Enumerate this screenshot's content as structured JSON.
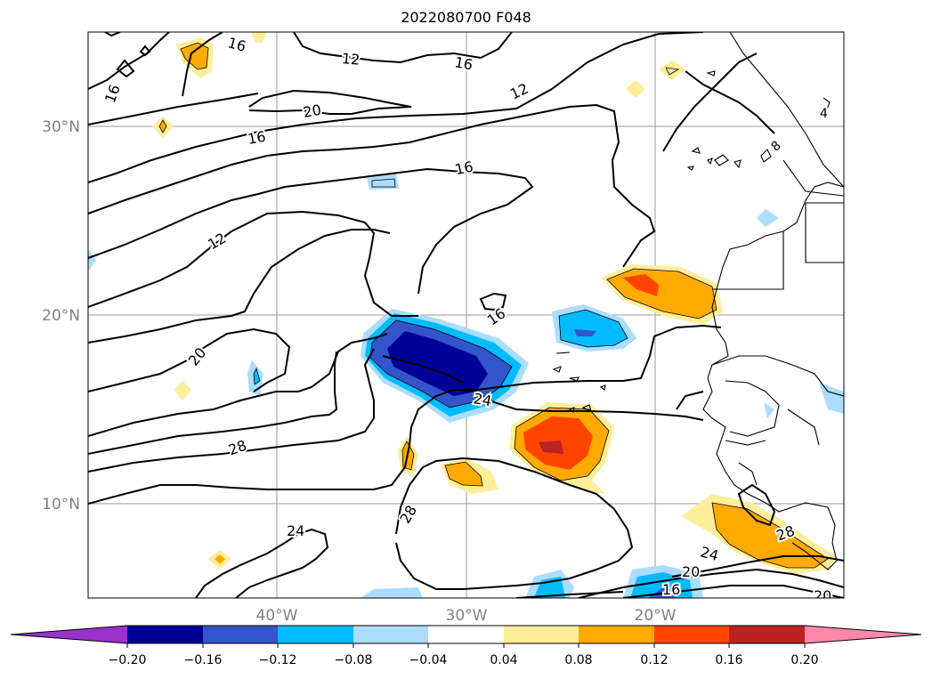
{
  "title": "2022080700 F048",
  "map": {
    "lat_labels": [
      {
        "text": "30°N",
        "lat": 30
      },
      {
        "text": "20°N",
        "lat": 20
      },
      {
        "text": "10°N",
        "lat": 10
      }
    ],
    "lon_labels": [
      {
        "text": "40°W",
        "lon": -40
      },
      {
        "text": "30°W",
        "lon": -30
      },
      {
        "text": "20°W",
        "lon": -20
      }
    ],
    "contour_labels": [
      "16",
      "16",
      "12",
      "16",
      "12",
      "20",
      "16",
      "16",
      "12",
      "20",
      "16",
      "28",
      "24",
      "28",
      "24",
      "20",
      "16",
      "20",
      "4",
      "8",
      "28",
      "24"
    ]
  },
  "colorbar": {
    "ticks": [
      "−0.20",
      "−0.16",
      "−0.12",
      "−0.08",
      "−0.04",
      "0.04",
      "0.08",
      "0.12",
      "0.16",
      "0.20"
    ],
    "colors": {
      "under": "#9933cc",
      "neg_020_016": "#000099",
      "neg_016_012": "#3355cc",
      "neg_012_008": "#00bbff",
      "neg_008_004": "#aaddff",
      "neutral": "#ffffff",
      "pos_004_008": "#ffee99",
      "pos_008_012": "#ffaa00",
      "pos_012_016": "#ff4400",
      "pos_016_020": "#bb2222",
      "over": "#ff88aa"
    }
  }
}
